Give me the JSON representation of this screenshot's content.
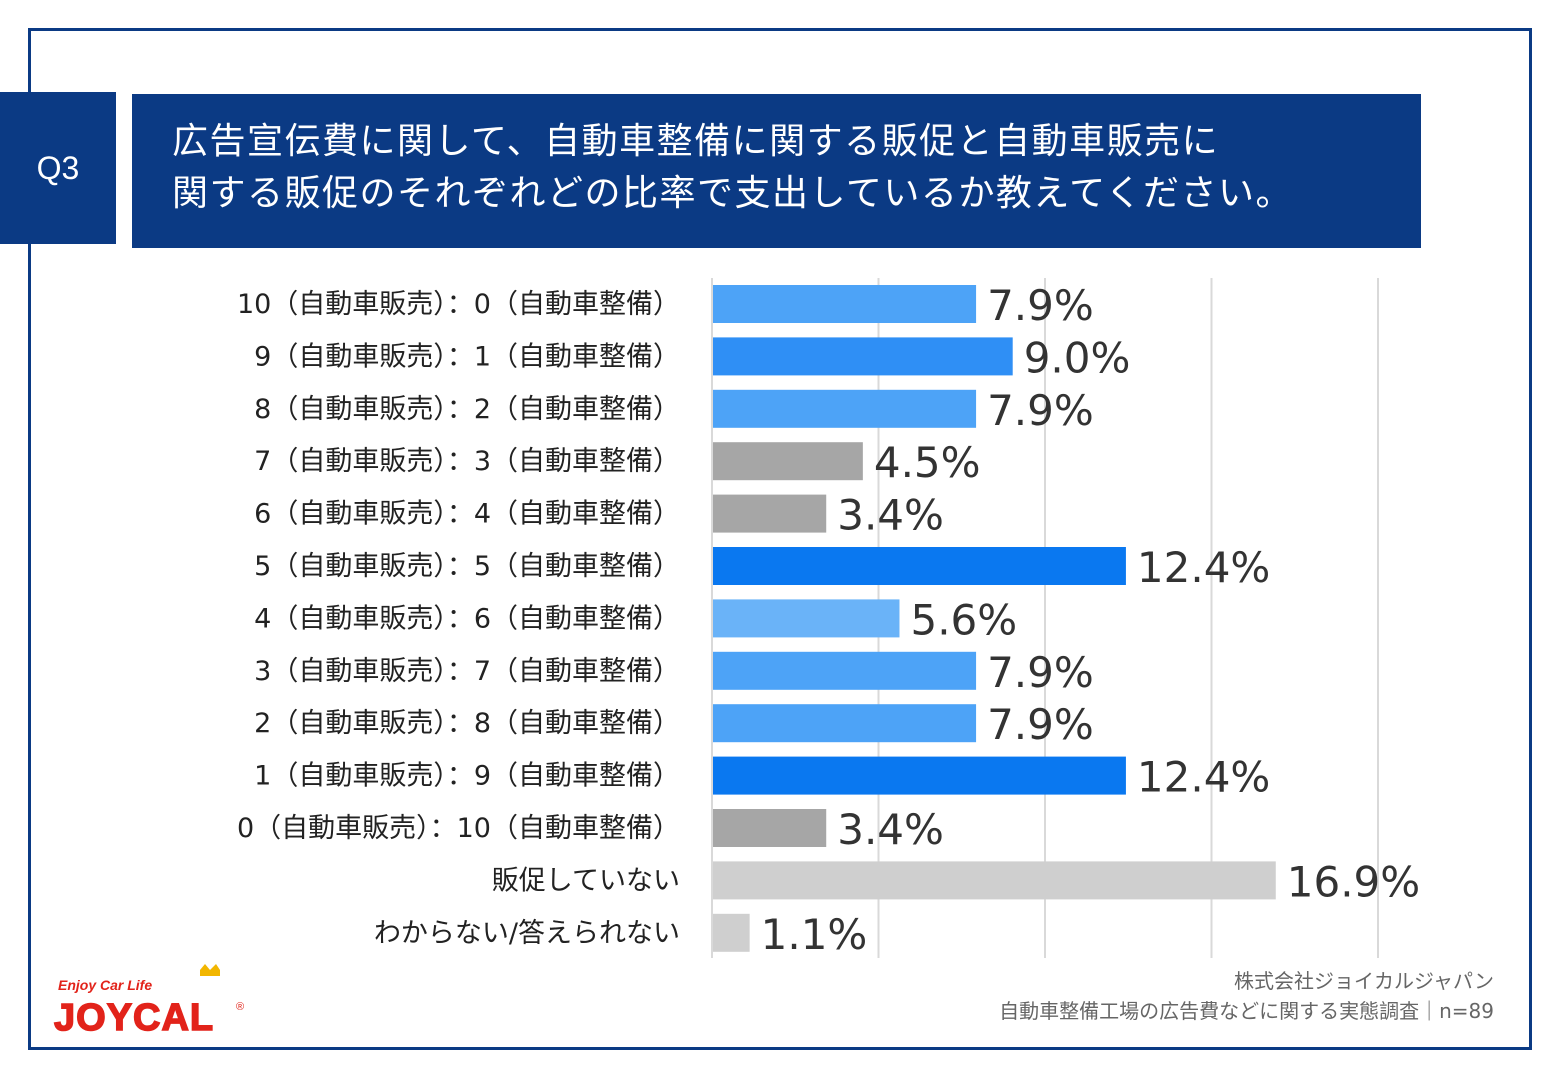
{
  "badge": "Q3",
  "title": {
    "line1": "広告宣伝費に関して、自動車整備に関する販促と自動車販売に",
    "line2": "関する販促のそれぞれどの比率で支出しているか教えてください。"
  },
  "chart_data": {
    "type": "bar",
    "orientation": "horizontal",
    "categories": [
      "10（自動車販売）：0（自動車整備）",
      "9（自動車販売）：1（自動車整備）",
      "8（自動車販売）：2（自動車整備）",
      "7（自動車販売）：3（自動車整備）",
      "6（自動車販売）：4（自動車整備）",
      "5（自動車販売）：5（自動車整備）",
      "4（自動車販売）：6（自動車整備）",
      "3（自動車販売）：7（自動車整備）",
      "2（自動車販売）：8（自動車整備）",
      "1（自動車販売）：9（自動車整備）",
      "0（自動車販売）：10（自動車整備）",
      "販促していない",
      "わからない/答えられない"
    ],
    "values": [
      7.9,
      9.0,
      7.9,
      4.5,
      3.4,
      12.4,
      5.6,
      7.9,
      7.9,
      12.4,
      3.4,
      16.9,
      1.1
    ],
    "value_labels": [
      "7.9%",
      "9.0%",
      "7.9%",
      "4.5%",
      "3.4%",
      "12.4%",
      "5.6%",
      "7.9%",
      "7.9%",
      "12.4%",
      "3.4%",
      "16.9%",
      "1.1%"
    ],
    "colors": [
      "#4da3f7",
      "#2f8ff5",
      "#4da3f7",
      "#a6a6a6",
      "#a6a6a6",
      "#0a78f0",
      "#6ab3f8",
      "#4da3f7",
      "#4da3f7",
      "#0a78f0",
      "#a6a6a6",
      "#cfcfcf",
      "#cfcfcf"
    ],
    "xlim": [
      0,
      20
    ],
    "grid": true
  },
  "footer": {
    "company": "株式会社ジョイカルジャパン",
    "survey": "自動車整備工場の広告費などに関する実態調査｜n=89"
  },
  "logo": {
    "tagline": "Enjoy Car Life",
    "brand": "JOYCAL",
    "mark": "®",
    "icon": "crown-icon"
  },
  "colors": {
    "navy": "#0b3a84",
    "logo_red": "#e2231a",
    "logo_gold": "#f2b600"
  }
}
